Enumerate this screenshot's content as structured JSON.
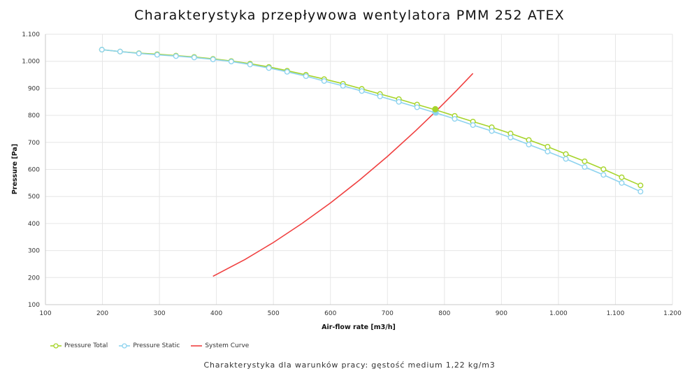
{
  "chart_data": {
    "type": "line",
    "title": "Charakterystyka przepływowa wentylatora PMM 252 ATEX",
    "caption": "Charakterystyka dla warunków pracy: gęstość medium 1,22 kg/m3",
    "xlabel": "Air-flow rate [m3/h]",
    "ylabel": "Pressure [Pa]",
    "xlim": [
      100,
      1200
    ],
    "ylim": [
      100,
      1100
    ],
    "x_ticks": [
      100,
      200,
      300,
      400,
      500,
      600,
      700,
      800,
      900,
      1000,
      1100,
      1200
    ],
    "x_tick_labels": [
      "100",
      "200",
      "300",
      "400",
      "500",
      "600",
      "700",
      "800",
      "900",
      "1.000",
      "1.100",
      "1.200"
    ],
    "y_ticks": [
      100,
      200,
      300,
      400,
      500,
      600,
      700,
      800,
      900,
      1000,
      1100
    ],
    "y_tick_labels": [
      "100",
      "200",
      "300",
      "400",
      "500",
      "600",
      "700",
      "800",
      "900",
      "1.000",
      "1.100"
    ],
    "grid": true,
    "legend_position": "bottom-left",
    "series": [
      {
        "name": "Pressure Total",
        "color": "#a6d42a",
        "marker": "circle-open",
        "x": [
          199,
          231,
          264,
          296,
          329,
          361,
          394,
          426,
          459,
          492,
          524,
          557,
          589,
          622,
          655,
          687,
          720,
          752,
          785,
          818,
          850,
          883,
          916,
          948,
          981,
          1013,
          1046,
          1079,
          1111,
          1144
        ],
        "y": [
          1043,
          1036,
          1030,
          1026,
          1021,
          1016,
          1009,
          1001,
          991,
          979,
          965,
          950,
          934,
          917,
          898,
          879,
          860,
          840,
          820,
          798,
          777,
          756,
          733,
          709,
          684,
          657,
          630,
          601,
          571,
          541
        ]
      },
      {
        "name": "Pressure Static",
        "color": "#8ed3ef",
        "marker": "circle-open",
        "x": [
          199,
          231,
          264,
          296,
          329,
          361,
          394,
          426,
          459,
          492,
          524,
          557,
          589,
          622,
          655,
          687,
          720,
          752,
          785,
          818,
          850,
          883,
          916,
          948,
          981,
          1013,
          1046,
          1079,
          1111,
          1144
        ],
        "y": [
          1043,
          1036,
          1029,
          1024,
          1019,
          1014,
          1007,
          999,
          988,
          975,
          961,
          945,
          927,
          909,
          890,
          870,
          850,
          830,
          809,
          787,
          764,
          742,
          718,
          692,
          666,
          639,
          609,
          580,
          550,
          518
        ]
      },
      {
        "name": "System Curve",
        "color": "#f04040",
        "marker": "none",
        "x": [
          394,
          450,
          500,
          550,
          600,
          650,
          700,
          750,
          784,
          820,
          850
        ],
        "y": [
          205,
          267,
          330,
          400,
          476,
          559,
          648,
          744,
          813,
          889,
          955
        ]
      }
    ],
    "operating_point": {
      "x": 784,
      "y": 815
    }
  }
}
